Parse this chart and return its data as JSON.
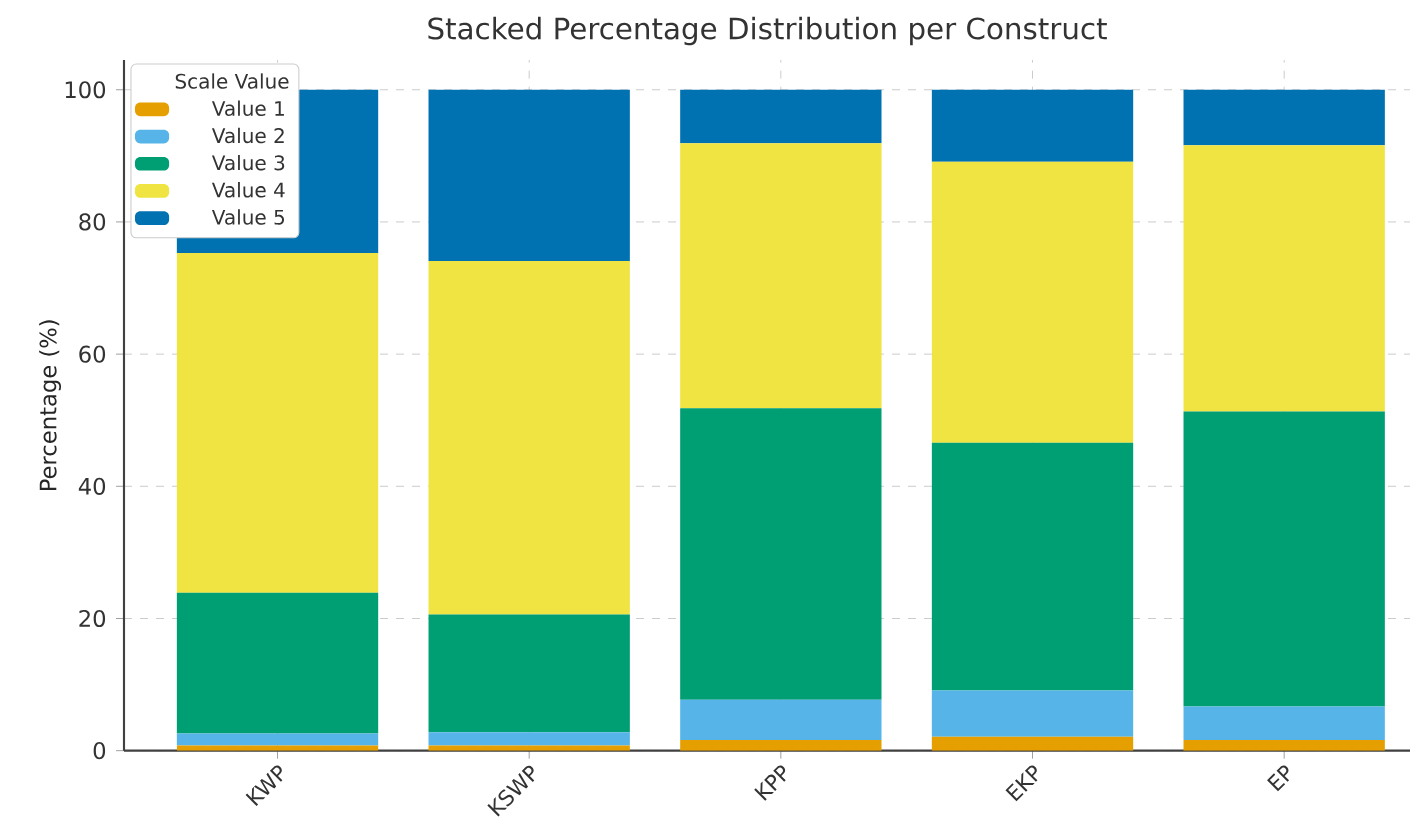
{
  "chart_data": {
    "type": "bar",
    "title": "Stacked Percentage Distribution per Construct",
    "ylabel": "Percentage (%)",
    "legend_title": "Scale Value",
    "categories": [
      "KWP",
      "KSWP",
      "KPP",
      "EKP",
      "EP"
    ],
    "stacked": true,
    "series": [
      {
        "name": "Value 1",
        "color": "#e69f00",
        "values": [
          0.8,
          0.8,
          1.6,
          2.1,
          1.6
        ]
      },
      {
        "name": "Value 2",
        "color": "#56b4e9",
        "values": [
          1.8,
          2.0,
          6.1,
          7.0,
          5.1
        ]
      },
      {
        "name": "Value 3",
        "color": "#009e73",
        "values": [
          21.3,
          17.8,
          44.1,
          37.5,
          44.6
        ]
      },
      {
        "name": "Value 4",
        "color": "#f0e442",
        "values": [
          51.4,
          53.5,
          40.1,
          42.5,
          40.3
        ]
      },
      {
        "name": "Value 5",
        "color": "#0072b2",
        "values": [
          24.7,
          25.9,
          8.1,
          10.9,
          8.4
        ]
      }
    ],
    "ylim": [
      0,
      104.5
    ],
    "yticks": [
      0,
      20,
      40,
      60,
      80,
      100
    ],
    "grid": true,
    "legend": "top left"
  }
}
